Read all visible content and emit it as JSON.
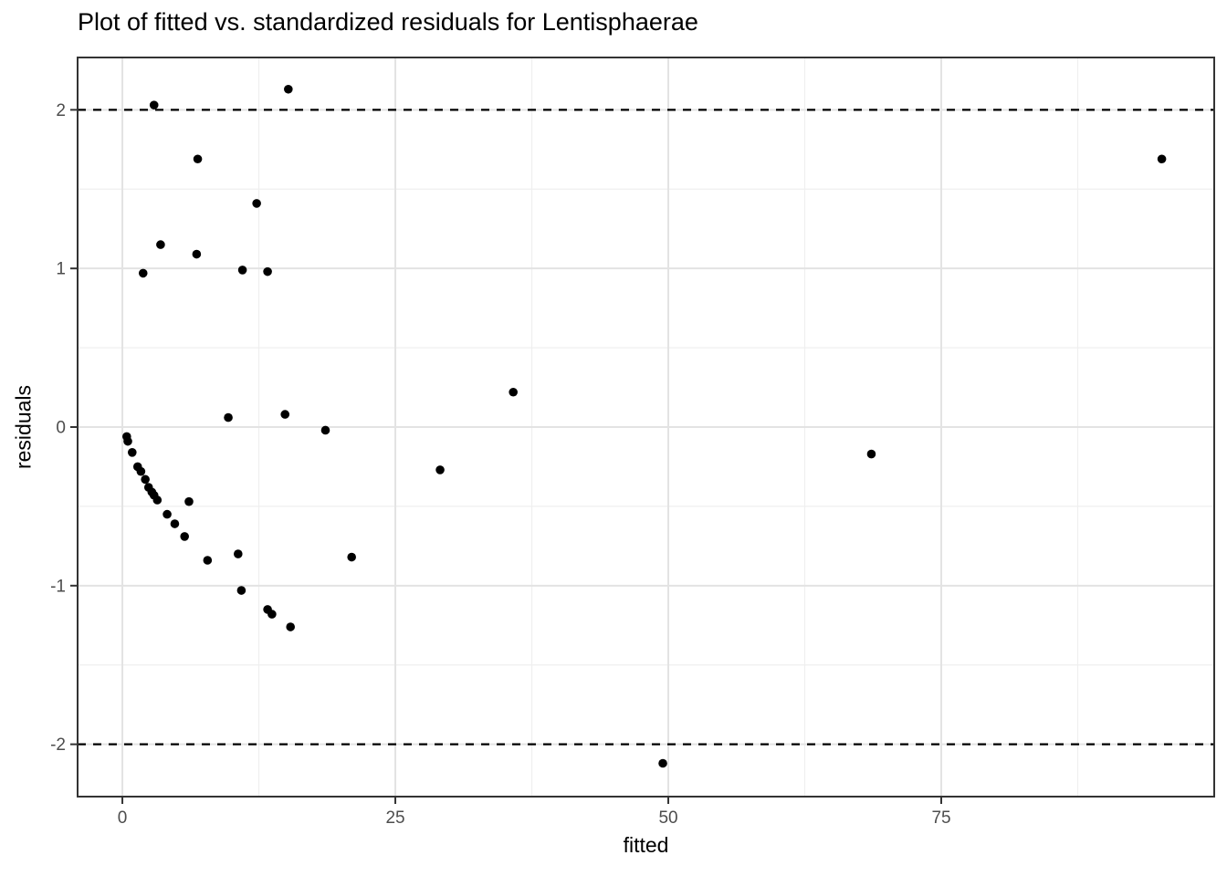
{
  "chart_data": {
    "type": "scatter",
    "title": "Plot of fitted vs. standardized residuals for Lentisphaerae",
    "xlabel": "fitted",
    "ylabel": "residuals",
    "xlim": [
      -4.1,
      100
    ],
    "ylim": [
      -2.33,
      2.33
    ],
    "x_ticks": [
      0,
      25,
      50,
      75
    ],
    "x_tick_labels": [
      "0",
      "25",
      "50",
      "75"
    ],
    "y_ticks": [
      -2,
      -1,
      0,
      1,
      2
    ],
    "y_tick_labels": [
      "-2",
      "-1",
      "0",
      "1",
      "2"
    ],
    "x_minor_gridlines": [
      12.5,
      37.5,
      62.5,
      87.5
    ],
    "y_minor_gridlines": [
      -1.5,
      -0.5,
      0.5,
      1.5
    ],
    "grid": true,
    "legend": "none",
    "reference_lines": {
      "y_values": [
        2,
        -2
      ],
      "style": "dashed",
      "color": "#000000"
    },
    "series": [
      {
        "name": "standardized residuals",
        "points": [
          [
            0.4,
            -0.06
          ],
          [
            0.5,
            -0.09
          ],
          [
            0.9,
            -0.16
          ],
          [
            1.4,
            -0.25
          ],
          [
            1.7,
            -0.28
          ],
          [
            1.9,
            0.97
          ],
          [
            2.1,
            -0.33
          ],
          [
            2.4,
            -0.38
          ],
          [
            2.7,
            -0.41
          ],
          [
            2.9,
            2.03
          ],
          [
            2.9,
            -0.43
          ],
          [
            3.2,
            -0.46
          ],
          [
            3.5,
            1.15
          ],
          [
            4.1,
            -0.55
          ],
          [
            4.8,
            -0.61
          ],
          [
            5.7,
            -0.69
          ],
          [
            6.1,
            -0.47
          ],
          [
            6.8,
            1.09
          ],
          [
            6.9,
            1.69
          ],
          [
            7.8,
            -0.84
          ],
          [
            9.7,
            0.06
          ],
          [
            10.6,
            -0.8
          ],
          [
            10.9,
            -1.03
          ],
          [
            11.0,
            0.99
          ],
          [
            12.3,
            1.41
          ],
          [
            13.3,
            0.98
          ],
          [
            13.3,
            -1.15
          ],
          [
            13.7,
            -1.18
          ],
          [
            14.9,
            0.08
          ],
          [
            15.2,
            2.13
          ],
          [
            15.4,
            -1.26
          ],
          [
            18.6,
            -0.02
          ],
          [
            21.0,
            -0.82
          ],
          [
            29.1,
            -0.27
          ],
          [
            35.8,
            0.22
          ],
          [
            49.5,
            -2.12
          ],
          [
            68.6,
            -0.17
          ],
          [
            95.2,
            1.69
          ]
        ]
      }
    ],
    "colors": {
      "point": "#000000",
      "panel_background": "#ffffff",
      "panel_border": "#333333",
      "major_grid": "#e3e3e3",
      "minor_grid": "#efefef",
      "tick_mark": "#333333",
      "tick_label": "#4d4d4d",
      "title_text": "#000000"
    }
  }
}
